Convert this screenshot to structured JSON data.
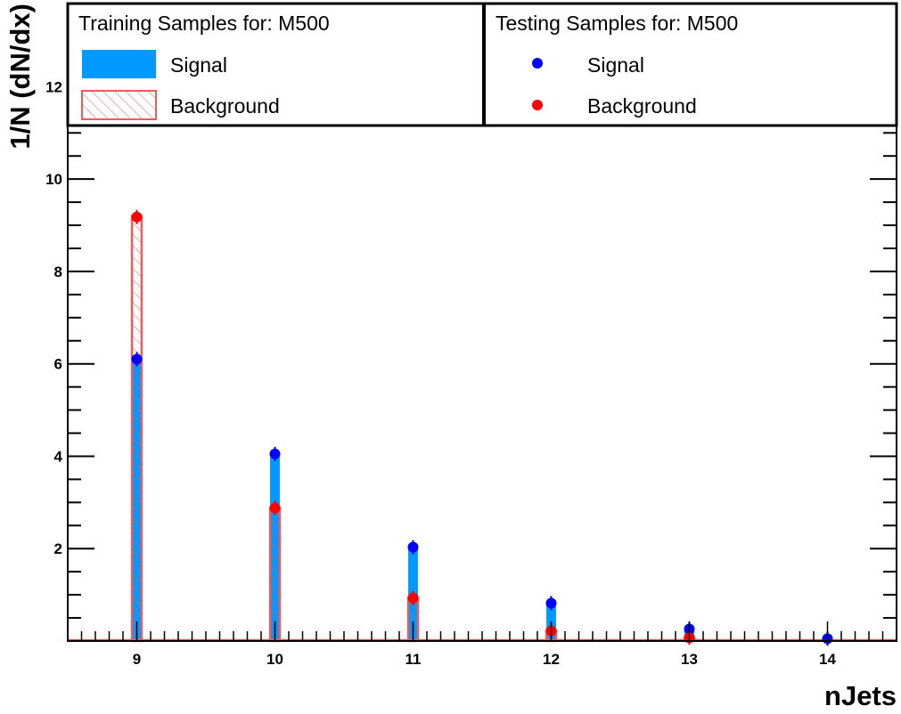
{
  "chart_data": {
    "type": "bar",
    "xlabel": "nJets",
    "ylabel": "1/N (dN/dx)",
    "xlim": [
      8.5,
      14.5
    ],
    "ylim": [
      0,
      13.8
    ],
    "x_ticks": [
      "9",
      "10",
      "11",
      "12",
      "13",
      "14"
    ],
    "y_ticks": [
      "2",
      "4",
      "6",
      "8",
      "10",
      "12"
    ],
    "x": [
      9,
      10,
      11,
      12,
      13,
      14
    ],
    "series": [
      {
        "name": "Signal",
        "group": "Training Samples for: M500",
        "style": "filled-bar",
        "color": "#0099ff",
        "values": [
          6.1,
          4.05,
          2.03,
          0.82,
          0.26,
          0.05
        ]
      },
      {
        "name": "Background",
        "group": "Training Samples for: M500",
        "style": "hatched-bar",
        "color": "#f05a5a",
        "values": [
          9.2,
          2.88,
          0.93,
          0.22,
          0.07,
          0.0
        ]
      },
      {
        "name": "Signal",
        "group": "Testing Samples for: M500",
        "style": "marker",
        "color": "#0000ff",
        "values": [
          6.1,
          4.05,
          2.03,
          0.82,
          0.26,
          0.05
        ]
      },
      {
        "name": "Background",
        "group": "Testing Samples for: M500",
        "style": "marker",
        "color": "#ff0000",
        "values": [
          9.18,
          2.88,
          0.93,
          0.22,
          0.07,
          0.0
        ]
      }
    ],
    "legend": {
      "placement": "top",
      "training_title": "Training Samples for: M500",
      "testing_title": "Testing Samples for: M500",
      "training_signal": "Signal",
      "training_background": "Background",
      "testing_signal": "Signal",
      "testing_background": "Background"
    }
  }
}
